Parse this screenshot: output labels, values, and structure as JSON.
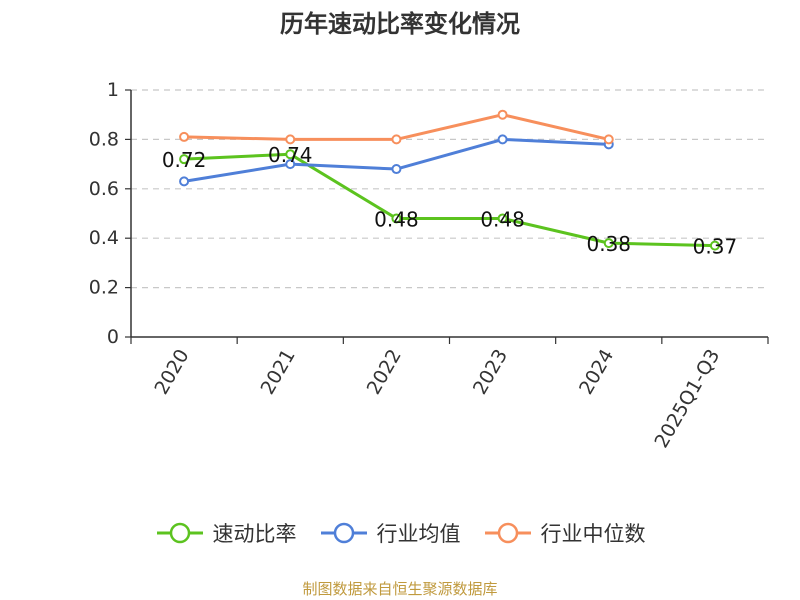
{
  "chart_data": {
    "type": "line",
    "title": "历年速动比率变化情况",
    "categories": [
      "2020",
      "2021",
      "2022",
      "2023",
      "2024",
      "2025Q1-Q3"
    ],
    "ylim": [
      0,
      1
    ],
    "yticks": [
      "0",
      "0.2",
      "0.4",
      "0.6",
      "0.8",
      "1"
    ],
    "grid": true,
    "legend_position": "bottom",
    "series": [
      {
        "name": "速动比率",
        "color": "#5cc31f",
        "labels": true,
        "values": [
          0.72,
          0.74,
          0.48,
          0.48,
          0.38,
          0.37
        ]
      },
      {
        "name": "行业均值",
        "color": "#4f7fd8",
        "labels": false,
        "values": [
          0.63,
          0.7,
          0.68,
          0.8,
          0.78,
          null
        ]
      },
      {
        "name": "行业中位数",
        "color": "#f78f5c",
        "labels": false,
        "values": [
          0.81,
          0.8,
          0.8,
          0.9,
          0.8,
          null
        ]
      }
    ]
  },
  "footer": {
    "source": "制图数据来自恒生聚源数据库"
  }
}
